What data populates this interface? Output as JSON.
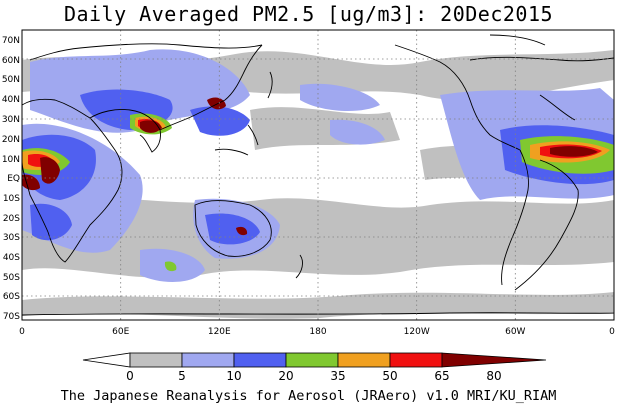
{
  "title": "Daily Averaged PM2.5 [ug/m3]: 20Dec2015",
  "footer": "The Japanese Reanalysis for Aerosol (JRAero) v1.0 MRI/KU_RIAM",
  "map": {
    "lat_labels": [
      "70N",
      "60N",
      "50N",
      "40N",
      "30N",
      "20N",
      "10N",
      "EQ",
      "10S",
      "20S",
      "30S",
      "40S",
      "50S",
      "60S",
      "70S"
    ],
    "lon_labels": [
      "0",
      "60E",
      "120E",
      "180",
      "120W",
      "60W",
      "0"
    ],
    "grid": "dotted"
  },
  "colorbar": {
    "labels": [
      "0",
      "5",
      "10",
      "20",
      "35",
      "50",
      "65",
      "80"
    ],
    "colors": [
      "#ffffff",
      "#c0c0c0",
      "#a0a8f0",
      "#5060f0",
      "#80c830",
      "#f0a020",
      "#f01010",
      "#800000"
    ]
  },
  "palette": {
    "land_line": "#000000",
    "frame": "#000000"
  }
}
